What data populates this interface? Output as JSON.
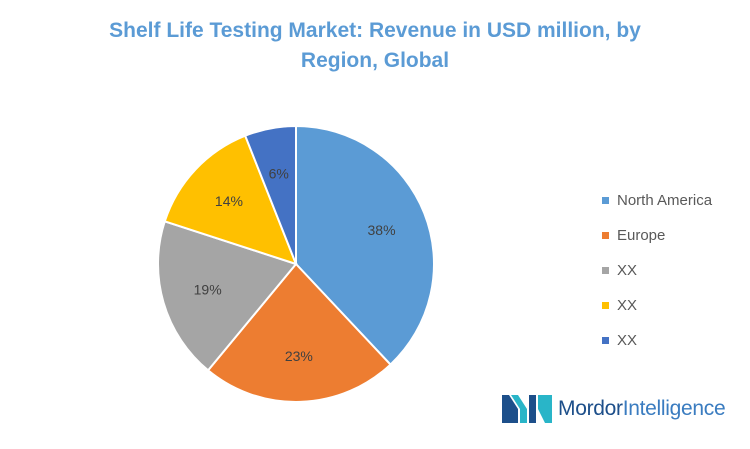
{
  "chart_data": {
    "type": "pie",
    "title": "Shelf Life Testing Market: Revenue in USD million, by Region, Global",
    "title_lines": [
      "Shelf Life Testing Market: Revenue in USD million, by",
      "Region, Global"
    ],
    "slices": [
      {
        "label": "North America",
        "value": 38,
        "display": "38%",
        "color": "#5b9bd5"
      },
      {
        "label": "Europe",
        "value": 23,
        "display": "23%",
        "color": "#ed7d31"
      },
      {
        "label": "XX",
        "value": 19,
        "display": "19%",
        "color": "#a5a5a5"
      },
      {
        "label": "XX",
        "value": 14,
        "display": "14%",
        "color": "#ffc000"
      },
      {
        "label": "XX",
        "value": 6,
        "display": "6%",
        "color": "#4472c4"
      }
    ],
    "legend_position": "right"
  },
  "brand": {
    "name_bold": "Mordor",
    "name_light": "Intelligence",
    "colors": {
      "dark": "#1d4f8a",
      "light": "#3a7cc0",
      "teal": "#29b5c8"
    }
  }
}
